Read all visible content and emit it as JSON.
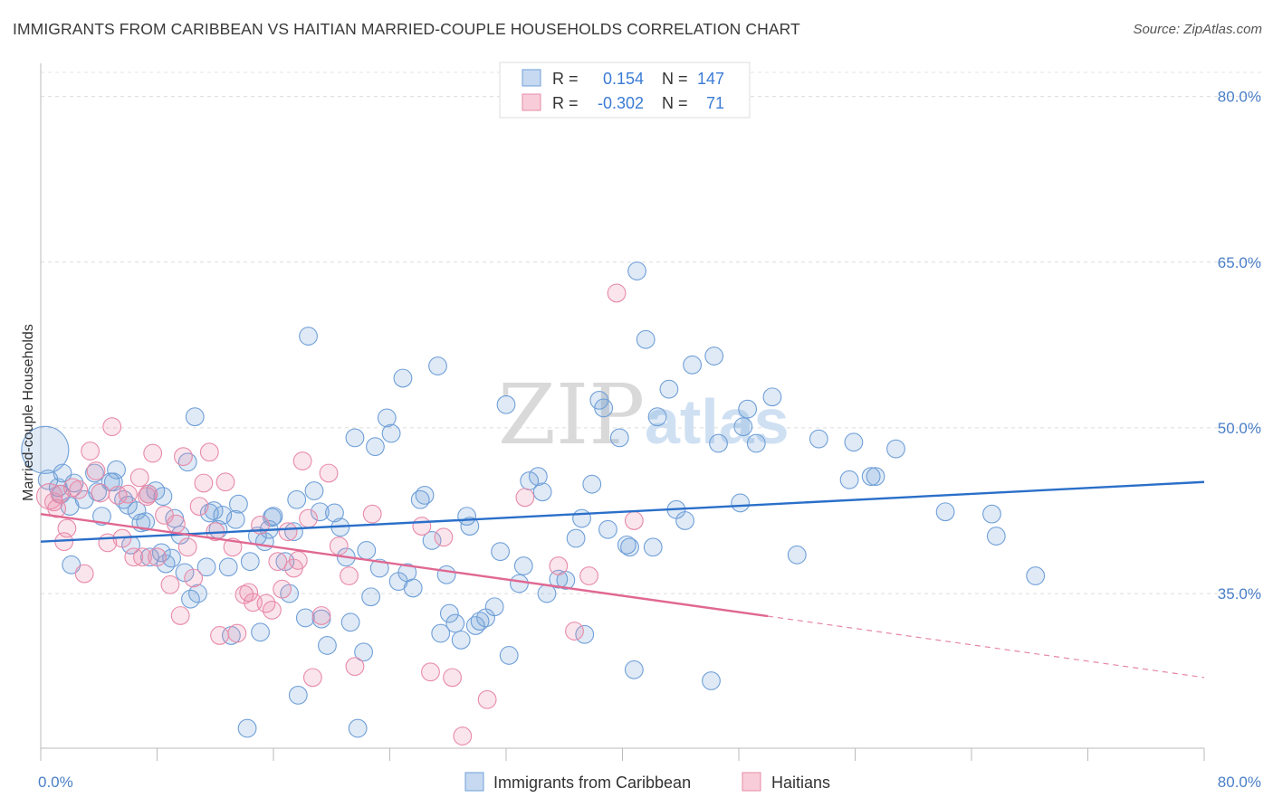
{
  "title": "IMMIGRANTS FROM CARIBBEAN VS HAITIAN MARRIED-COUPLE HOUSEHOLDS CORRELATION CHART",
  "source": "Source: ZipAtlas.com",
  "watermark": {
    "part1": "ZIP",
    "part2": "atlas"
  },
  "legend_box": {
    "rows": [
      {
        "r_label": "R =",
        "r_value": "0.154",
        "n_label": "N =",
        "n_value": "147",
        "color": "#6f9fd8"
      },
      {
        "r_label": "R =",
        "r_value": "-0.302",
        "n_label": "N =",
        "n_value": "71",
        "color": "#e88aa8"
      }
    ]
  },
  "bottom_legend": [
    {
      "label": "Immigrants from Caribbean",
      "color": "#6f9fd8"
    },
    {
      "label": "Haitians",
      "color": "#e88aa8"
    }
  ],
  "chart_data": {
    "type": "scatter",
    "xlabel": "",
    "ylabel": "Married-couple Households",
    "xlim": [
      0,
      80
    ],
    "ylim": [
      21,
      83
    ],
    "x_tick_labels": [
      {
        "value": 0,
        "label": "0.0%"
      },
      {
        "value": 80,
        "label": "80.0%"
      }
    ],
    "y_tick_labels": [
      {
        "value": 35,
        "label": "35.0%"
      },
      {
        "value": 50,
        "label": "50.0%"
      },
      {
        "value": 65,
        "label": "65.0%"
      },
      {
        "value": 80,
        "label": "80.0%"
      }
    ],
    "grid": true,
    "legend_position": "top-center",
    "series": [
      {
        "name": "Immigrants from Caribbean",
        "color": "#6f9fd8",
        "trend": {
          "x": [
            0,
            80
          ],
          "y": [
            39.7,
            45.1
          ],
          "dashed_from": null
        },
        "points": [
          [
            0.3,
            48.0,
            30
          ],
          [
            0.5,
            45.3,
            12
          ],
          [
            1.2,
            44.6,
            11
          ],
          [
            1.5,
            45.9,
            11
          ],
          [
            1.4,
            44.0,
            11
          ],
          [
            2.3,
            45.0,
            11
          ],
          [
            2.0,
            42.9,
            11
          ],
          [
            3.0,
            43.5,
            11
          ],
          [
            3.7,
            45.9,
            11
          ],
          [
            3.9,
            44.2,
            11
          ],
          [
            4.2,
            42.0,
            11
          ],
          [
            4.8,
            45.1,
            11
          ],
          [
            5.0,
            45.1,
            11
          ],
          [
            5.2,
            46.2,
            11
          ],
          [
            5.7,
            43.5,
            11
          ],
          [
            6.2,
            39.4,
            11
          ],
          [
            6.6,
            42.5,
            11
          ],
          [
            6.9,
            41.4,
            11
          ],
          [
            7.2,
            41.5,
            11
          ],
          [
            7.4,
            44.0,
            11
          ],
          [
            7.5,
            38.3,
            11
          ],
          [
            7.9,
            44.3,
            11
          ],
          [
            8.3,
            38.7,
            11
          ],
          [
            8.4,
            43.8,
            11
          ],
          [
            8.6,
            37.7,
            11
          ],
          [
            9.0,
            38.2,
            11
          ],
          [
            9.2,
            41.8,
            11
          ],
          [
            9.6,
            40.3,
            11
          ],
          [
            9.9,
            36.9,
            11
          ],
          [
            10.1,
            46.9,
            11
          ],
          [
            10.3,
            34.5,
            11
          ],
          [
            10.6,
            51.0,
            11
          ],
          [
            10.8,
            35.0,
            11
          ],
          [
            11.4,
            37.4,
            11
          ],
          [
            11.6,
            42.3,
            11
          ],
          [
            11.9,
            42.5,
            11
          ],
          [
            12.2,
            40.8,
            11
          ],
          [
            12.5,
            42.1,
            11
          ],
          [
            12.9,
            37.4,
            11
          ],
          [
            13.1,
            31.2,
            11
          ],
          [
            13.4,
            41.7,
            11
          ],
          [
            13.6,
            43.1,
            11
          ],
          [
            14.2,
            22.8,
            11
          ],
          [
            14.4,
            37.9,
            11
          ],
          [
            14.9,
            40.2,
            11
          ],
          [
            15.1,
            31.5,
            11
          ],
          [
            15.4,
            39.7,
            11
          ],
          [
            15.7,
            40.8,
            11
          ],
          [
            16.0,
            42.0,
            11
          ],
          [
            16.8,
            37.9,
            11
          ],
          [
            17.1,
            35.0,
            11
          ],
          [
            17.4,
            40.6,
            11
          ],
          [
            17.6,
            43.5,
            11
          ],
          [
            17.7,
            25.8,
            11
          ],
          [
            18.2,
            32.8,
            11
          ],
          [
            18.4,
            58.3,
            11
          ],
          [
            18.8,
            44.3,
            11
          ],
          [
            19.2,
            42.4,
            11
          ],
          [
            19.3,
            32.7,
            11
          ],
          [
            19.7,
            30.3,
            11
          ],
          [
            20.2,
            42.3,
            11
          ],
          [
            20.6,
            41.0,
            11
          ],
          [
            21.0,
            38.3,
            11
          ],
          [
            21.3,
            32.4,
            11
          ],
          [
            21.6,
            49.1,
            11
          ],
          [
            21.8,
            22.8,
            11
          ],
          [
            22.2,
            29.7,
            11
          ],
          [
            22.4,
            38.9,
            11
          ],
          [
            22.7,
            34.7,
            11
          ],
          [
            23.0,
            48.3,
            11
          ],
          [
            23.3,
            37.3,
            11
          ],
          [
            23.8,
            50.9,
            11
          ],
          [
            24.1,
            49.5,
            11
          ],
          [
            24.6,
            36.1,
            11
          ],
          [
            24.9,
            54.5,
            11
          ],
          [
            25.2,
            36.9,
            11
          ],
          [
            25.6,
            35.5,
            11
          ],
          [
            26.1,
            43.5,
            11
          ],
          [
            26.4,
            43.9,
            11
          ],
          [
            26.9,
            39.8,
            11
          ],
          [
            27.3,
            55.6,
            11
          ],
          [
            27.5,
            31.4,
            11
          ],
          [
            27.9,
            36.7,
            11
          ],
          [
            28.1,
            33.2,
            11
          ],
          [
            28.5,
            32.3,
            11
          ],
          [
            28.9,
            30.8,
            11
          ],
          [
            29.3,
            42.0,
            11
          ],
          [
            29.5,
            41.1,
            11
          ],
          [
            29.9,
            32.1,
            11
          ],
          [
            30.2,
            32.5,
            11
          ],
          [
            30.6,
            32.8,
            11
          ],
          [
            31.2,
            33.8,
            11
          ],
          [
            31.6,
            38.8,
            11
          ],
          [
            32.0,
            52.1,
            11
          ],
          [
            32.2,
            29.4,
            11
          ],
          [
            32.9,
            35.9,
            11
          ],
          [
            33.2,
            37.5,
            11
          ],
          [
            33.6,
            45.2,
            11
          ],
          [
            34.2,
            45.6,
            11
          ],
          [
            34.5,
            44.2,
            11
          ],
          [
            34.8,
            35.0,
            11
          ],
          [
            35.6,
            36.3,
            11
          ],
          [
            36.1,
            36.2,
            11
          ],
          [
            36.8,
            40.0,
            11
          ],
          [
            37.2,
            41.8,
            11
          ],
          [
            37.4,
            31.3,
            11
          ],
          [
            37.9,
            44.9,
            11
          ],
          [
            38.4,
            52.5,
            11
          ],
          [
            38.7,
            51.8,
            11
          ],
          [
            39.0,
            40.8,
            11
          ],
          [
            39.8,
            49.1,
            11
          ],
          [
            40.3,
            39.4,
            11
          ],
          [
            40.5,
            39.2,
            11
          ],
          [
            40.8,
            28.1,
            11
          ],
          [
            41.0,
            64.2,
            11
          ],
          [
            41.6,
            58.0,
            11
          ],
          [
            42.1,
            39.2,
            11
          ],
          [
            42.4,
            51.0,
            11
          ],
          [
            43.2,
            53.5,
            11
          ],
          [
            43.7,
            42.6,
            11
          ],
          [
            44.3,
            41.6,
            11
          ],
          [
            44.8,
            55.7,
            11
          ],
          [
            46.1,
            27.1,
            11
          ],
          [
            46.3,
            56.5,
            11
          ],
          [
            46.6,
            48.6,
            11
          ],
          [
            48.1,
            43.2,
            11
          ],
          [
            48.3,
            50.1,
            11
          ],
          [
            48.6,
            51.7,
            11
          ],
          [
            49.2,
            48.6,
            11
          ],
          [
            50.3,
            52.8,
            11
          ],
          [
            52.0,
            38.5,
            11
          ],
          [
            53.5,
            49.0,
            11
          ],
          [
            55.6,
            45.3,
            11
          ],
          [
            55.9,
            48.7,
            11
          ],
          [
            57.1,
            45.6,
            11
          ],
          [
            57.4,
            45.6,
            11
          ],
          [
            58.8,
            48.1,
            11
          ],
          [
            62.2,
            42.4,
            11
          ],
          [
            65.4,
            42.2,
            11
          ],
          [
            65.7,
            40.2,
            11
          ],
          [
            68.4,
            36.6,
            11
          ],
          [
            2.1,
            37.6,
            11
          ],
          [
            15.9,
            41.9,
            11
          ],
          [
            6.0,
            43.0,
            11
          ]
        ]
      },
      {
        "name": "Haitians",
        "color": "#e88aa8",
        "trend": {
          "x": [
            0,
            80
          ],
          "y": [
            42.2,
            27.4
          ],
          "dashed_from": 50
        },
        "points": [
          [
            0.6,
            43.8,
            16
          ],
          [
            0.9,
            43.3,
            11
          ],
          [
            1.1,
            42.7,
            11
          ],
          [
            1.3,
            44.0,
            11
          ],
          [
            1.6,
            39.7,
            11
          ],
          [
            1.8,
            40.9,
            11
          ],
          [
            2.2,
            44.6,
            11
          ],
          [
            2.6,
            44.4,
            11
          ],
          [
            3.0,
            36.8,
            11
          ],
          [
            3.4,
            47.9,
            11
          ],
          [
            3.8,
            46.1,
            11
          ],
          [
            4.1,
            44.1,
            11
          ],
          [
            4.6,
            39.6,
            11
          ],
          [
            4.9,
            50.1,
            11
          ],
          [
            5.3,
            43.9,
            11
          ],
          [
            5.6,
            40.0,
            11
          ],
          [
            6.0,
            44.0,
            11
          ],
          [
            6.4,
            38.3,
            11
          ],
          [
            6.8,
            45.5,
            11
          ],
          [
            7.0,
            38.3,
            11
          ],
          [
            7.3,
            43.8,
            11
          ],
          [
            7.7,
            47.7,
            11
          ],
          [
            8.0,
            38.3,
            11
          ],
          [
            8.5,
            42.1,
            11
          ],
          [
            8.9,
            35.8,
            11
          ],
          [
            9.3,
            41.3,
            11
          ],
          [
            9.6,
            33.0,
            11
          ],
          [
            9.8,
            47.4,
            11
          ],
          [
            10.1,
            39.2,
            11
          ],
          [
            10.5,
            36.4,
            11
          ],
          [
            10.9,
            42.9,
            11
          ],
          [
            11.2,
            45.0,
            11
          ],
          [
            11.6,
            47.8,
            11
          ],
          [
            12.0,
            40.6,
            11
          ],
          [
            12.3,
            31.2,
            11
          ],
          [
            12.7,
            45.1,
            11
          ],
          [
            13.2,
            39.2,
            11
          ],
          [
            13.5,
            31.4,
            11
          ],
          [
            14.0,
            34.9,
            11
          ],
          [
            14.3,
            35.1,
            11
          ],
          [
            14.6,
            34.2,
            11
          ],
          [
            15.1,
            41.2,
            11
          ],
          [
            15.5,
            34.1,
            11
          ],
          [
            15.9,
            33.5,
            11
          ],
          [
            16.3,
            37.9,
            11
          ],
          [
            16.6,
            35.4,
            11
          ],
          [
            17.0,
            40.6,
            11
          ],
          [
            17.4,
            37.3,
            11
          ],
          [
            17.7,
            38.0,
            11
          ],
          [
            18.0,
            47.0,
            11
          ],
          [
            18.4,
            41.8,
            11
          ],
          [
            18.7,
            27.4,
            11
          ],
          [
            19.3,
            33.0,
            11
          ],
          [
            19.8,
            45.9,
            11
          ],
          [
            20.5,
            39.3,
            11
          ],
          [
            21.2,
            36.6,
            11
          ],
          [
            21.6,
            28.4,
            11
          ],
          [
            22.8,
            42.2,
            11
          ],
          [
            26.2,
            41.1,
            11
          ],
          [
            26.8,
            27.9,
            11
          ],
          [
            27.7,
            40.1,
            11
          ],
          [
            28.3,
            27.4,
            11
          ],
          [
            29.0,
            22.1,
            11
          ],
          [
            30.7,
            25.4,
            11
          ],
          [
            33.3,
            43.7,
            11
          ],
          [
            35.6,
            37.5,
            11
          ],
          [
            37.7,
            36.6,
            11
          ],
          [
            39.6,
            62.2,
            11
          ],
          [
            40.8,
            41.6,
            11
          ],
          [
            36.7,
            31.6,
            11
          ],
          [
            7.4,
            44.0,
            11
          ]
        ]
      }
    ]
  }
}
